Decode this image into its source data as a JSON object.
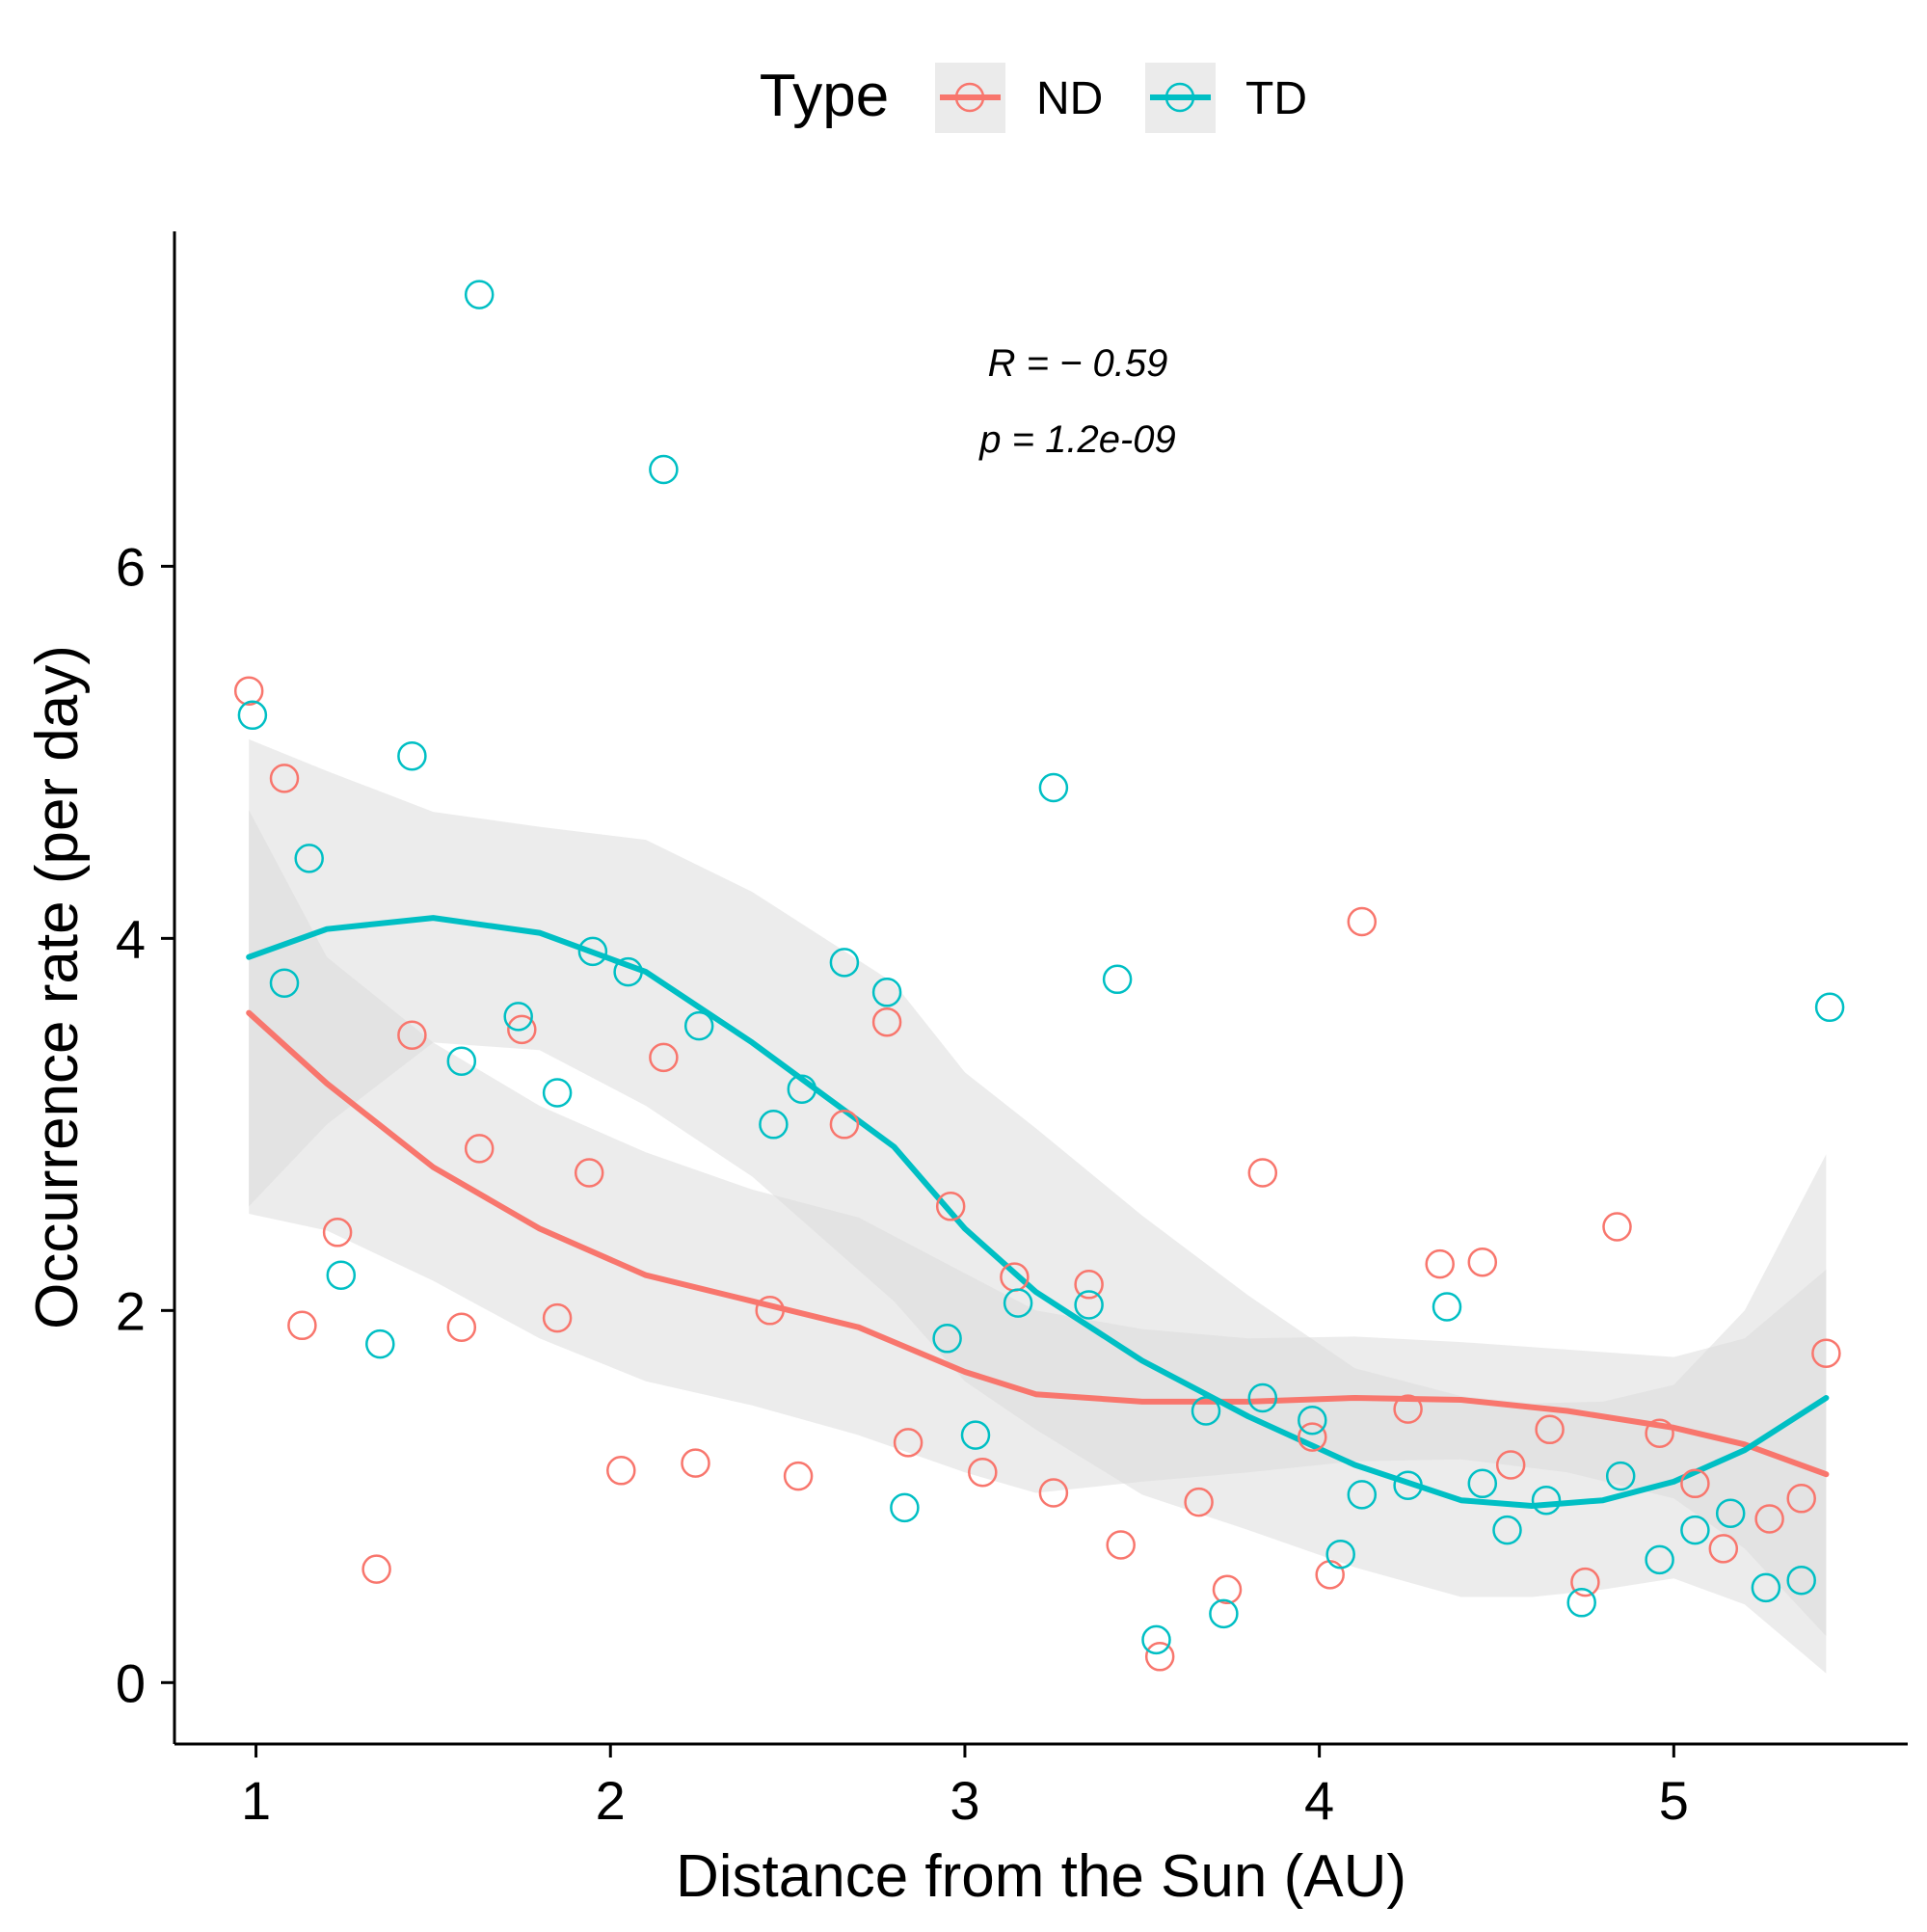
{
  "chart_data": {
    "type": "scatter",
    "xlabel": "Distance from the Sun (AU)",
    "ylabel": "Occurrence rate (per day)",
    "xlim": [
      0.77,
      5.66
    ],
    "ylim": [
      -0.33,
      7.8
    ],
    "x_ticks": [
      1,
      2,
      3,
      4,
      5
    ],
    "y_ticks": [
      0,
      2,
      4,
      6
    ],
    "grid": false,
    "legend": {
      "title": "Type",
      "placement": "top",
      "entries": [
        "ND",
        "TD"
      ]
    },
    "annotation": {
      "r_label": "R = − 0.59",
      "p_label": "p = 1.2e-09"
    },
    "colors": {
      "ND": "#F8766D",
      "TD": "#00BFC4",
      "ribbon": "#d9d9d9"
    },
    "series": [
      {
        "name": "ND",
        "points": [
          [
            0.98,
            5.33
          ],
          [
            1.08,
            4.86
          ],
          [
            1.13,
            1.92
          ],
          [
            1.23,
            2.42
          ],
          [
            1.34,
            0.61
          ],
          [
            1.44,
            3.48
          ],
          [
            1.58,
            1.91
          ],
          [
            1.63,
            2.87
          ],
          [
            1.75,
            3.51
          ],
          [
            1.85,
            1.96
          ],
          [
            1.94,
            2.74
          ],
          [
            2.03,
            1.14
          ],
          [
            2.15,
            3.36
          ],
          [
            2.24,
            1.18
          ],
          [
            2.45,
            2.0
          ],
          [
            2.53,
            1.11
          ],
          [
            2.66,
            3.0
          ],
          [
            2.78,
            3.55
          ],
          [
            2.84,
            1.29
          ],
          [
            2.96,
            2.56
          ],
          [
            3.05,
            1.13
          ],
          [
            3.14,
            2.18
          ],
          [
            3.25,
            1.02
          ],
          [
            3.35,
            2.14
          ],
          [
            3.44,
            0.74
          ],
          [
            3.55,
            0.14
          ],
          [
            3.66,
            0.97
          ],
          [
            3.74,
            0.5
          ],
          [
            3.84,
            2.74
          ],
          [
            3.98,
            1.32
          ],
          [
            4.03,
            0.58
          ],
          [
            4.12,
            4.09
          ],
          [
            4.25,
            1.47
          ],
          [
            4.34,
            2.25
          ],
          [
            4.46,
            2.26
          ],
          [
            4.54,
            1.17
          ],
          [
            4.65,
            1.36
          ],
          [
            4.75,
            0.54
          ],
          [
            4.84,
            2.45
          ],
          [
            4.96,
            1.34
          ],
          [
            5.06,
            1.07
          ],
          [
            5.14,
            0.72
          ],
          [
            5.27,
            0.88
          ],
          [
            5.36,
            0.99
          ],
          [
            5.43,
            1.77
          ]
        ],
        "trend": [
          [
            0.98,
            3.6
          ],
          [
            1.2,
            3.22
          ],
          [
            1.5,
            2.77
          ],
          [
            1.8,
            2.44
          ],
          [
            2.1,
            2.19
          ],
          [
            2.4,
            2.05
          ],
          [
            2.7,
            1.91
          ],
          [
            3.0,
            1.67
          ],
          [
            3.2,
            1.55
          ],
          [
            3.5,
            1.51
          ],
          [
            3.8,
            1.51
          ],
          [
            4.1,
            1.53
          ],
          [
            4.4,
            1.52
          ],
          [
            4.7,
            1.46
          ],
          [
            5.0,
            1.37
          ],
          [
            5.2,
            1.28
          ],
          [
            5.43,
            1.12
          ]
        ],
        "band_upper": [
          [
            0.98,
            4.69
          ],
          [
            1.2,
            3.9
          ],
          [
            1.5,
            3.44
          ],
          [
            1.8,
            3.1
          ],
          [
            2.1,
            2.85
          ],
          [
            2.4,
            2.65
          ],
          [
            2.7,
            2.5
          ],
          [
            3.0,
            2.2
          ],
          [
            3.2,
            2.0
          ],
          [
            3.5,
            1.9
          ],
          [
            3.8,
            1.85
          ],
          [
            4.1,
            1.86
          ],
          [
            4.4,
            1.83
          ],
          [
            4.7,
            1.79
          ],
          [
            5.0,
            1.75
          ],
          [
            5.2,
            1.85
          ],
          [
            5.43,
            2.22
          ]
        ],
        "band_lower": [
          [
            0.98,
            2.52
          ],
          [
            1.2,
            2.43
          ],
          [
            1.5,
            2.16
          ],
          [
            1.8,
            1.85
          ],
          [
            2.1,
            1.62
          ],
          [
            2.4,
            1.49
          ],
          [
            2.7,
            1.33
          ],
          [
            3.0,
            1.13
          ],
          [
            3.2,
            1.02
          ],
          [
            3.5,
            1.08
          ],
          [
            3.8,
            1.13
          ],
          [
            4.1,
            1.19
          ],
          [
            4.4,
            1.2
          ],
          [
            4.7,
            1.13
          ],
          [
            5.0,
            0.99
          ],
          [
            5.2,
            0.72
          ],
          [
            5.43,
            0.25
          ]
        ]
      },
      {
        "name": "TD",
        "points": [
          [
            0.99,
            5.2
          ],
          [
            1.08,
            3.76
          ],
          [
            1.15,
            4.43
          ],
          [
            1.24,
            2.19
          ],
          [
            1.35,
            1.82
          ],
          [
            1.44,
            4.98
          ],
          [
            1.58,
            3.34
          ],
          [
            1.63,
            7.46
          ],
          [
            1.74,
            3.58
          ],
          [
            1.85,
            3.17
          ],
          [
            1.95,
            3.93
          ],
          [
            2.05,
            3.82
          ],
          [
            2.15,
            6.52
          ],
          [
            2.25,
            3.53
          ],
          [
            2.46,
            3.0
          ],
          [
            2.54,
            3.19
          ],
          [
            2.66,
            3.87
          ],
          [
            2.78,
            3.71
          ],
          [
            2.83,
            0.94
          ],
          [
            2.95,
            1.85
          ],
          [
            3.03,
            1.33
          ],
          [
            3.15,
            2.04
          ],
          [
            3.25,
            4.81
          ],
          [
            3.35,
            2.03
          ],
          [
            3.43,
            3.78
          ],
          [
            3.54,
            0.23
          ],
          [
            3.68,
            1.46
          ],
          [
            3.73,
            0.37
          ],
          [
            3.84,
            1.53
          ],
          [
            3.98,
            1.41
          ],
          [
            4.12,
            1.01
          ],
          [
            4.06,
            0.69
          ],
          [
            4.25,
            1.06
          ],
          [
            4.36,
            2.02
          ],
          [
            4.46,
            1.07
          ],
          [
            4.53,
            0.82
          ],
          [
            4.64,
            0.98
          ],
          [
            4.74,
            0.43
          ],
          [
            4.85,
            1.11
          ],
          [
            4.96,
            0.66
          ],
          [
            5.06,
            0.82
          ],
          [
            5.16,
            0.91
          ],
          [
            5.26,
            0.51
          ],
          [
            5.36,
            0.55
          ],
          [
            5.44,
            3.63
          ]
        ],
        "trend": [
          [
            0.98,
            3.9
          ],
          [
            1.2,
            4.05
          ],
          [
            1.5,
            4.11
          ],
          [
            1.8,
            4.03
          ],
          [
            2.1,
            3.82
          ],
          [
            2.4,
            3.44
          ],
          [
            2.8,
            2.88
          ],
          [
            3.0,
            2.44
          ],
          [
            3.2,
            2.1
          ],
          [
            3.5,
            1.73
          ],
          [
            3.8,
            1.43
          ],
          [
            4.1,
            1.17
          ],
          [
            4.4,
            0.98
          ],
          [
            4.6,
            0.95
          ],
          [
            4.8,
            0.98
          ],
          [
            5.0,
            1.08
          ],
          [
            5.2,
            1.25
          ],
          [
            5.43,
            1.53
          ]
        ],
        "band_upper": [
          [
            0.98,
            5.07
          ],
          [
            1.2,
            4.9
          ],
          [
            1.5,
            4.68
          ],
          [
            1.8,
            4.6
          ],
          [
            2.1,
            4.53
          ],
          [
            2.4,
            4.25
          ],
          [
            2.8,
            3.76
          ],
          [
            3.0,
            3.28
          ],
          [
            3.2,
            2.98
          ],
          [
            3.5,
            2.51
          ],
          [
            3.8,
            2.08
          ],
          [
            4.1,
            1.69
          ],
          [
            4.4,
            1.54
          ],
          [
            4.6,
            1.5
          ],
          [
            4.8,
            1.51
          ],
          [
            5.0,
            1.6
          ],
          [
            5.2,
            2.0
          ],
          [
            5.43,
            2.84
          ]
        ],
        "band_lower": [
          [
            0.98,
            2.56
          ],
          [
            1.2,
            3.0
          ],
          [
            1.5,
            3.44
          ],
          [
            1.8,
            3.4
          ],
          [
            2.1,
            3.1
          ],
          [
            2.4,
            2.72
          ],
          [
            2.8,
            2.05
          ],
          [
            3.0,
            1.62
          ],
          [
            3.2,
            1.36
          ],
          [
            3.5,
            1.01
          ],
          [
            3.8,
            0.82
          ],
          [
            4.1,
            0.62
          ],
          [
            4.4,
            0.46
          ],
          [
            4.6,
            0.46
          ],
          [
            4.8,
            0.5
          ],
          [
            5.0,
            0.56
          ],
          [
            5.2,
            0.42
          ],
          [
            5.43,
            0.05
          ]
        ]
      }
    ]
  }
}
